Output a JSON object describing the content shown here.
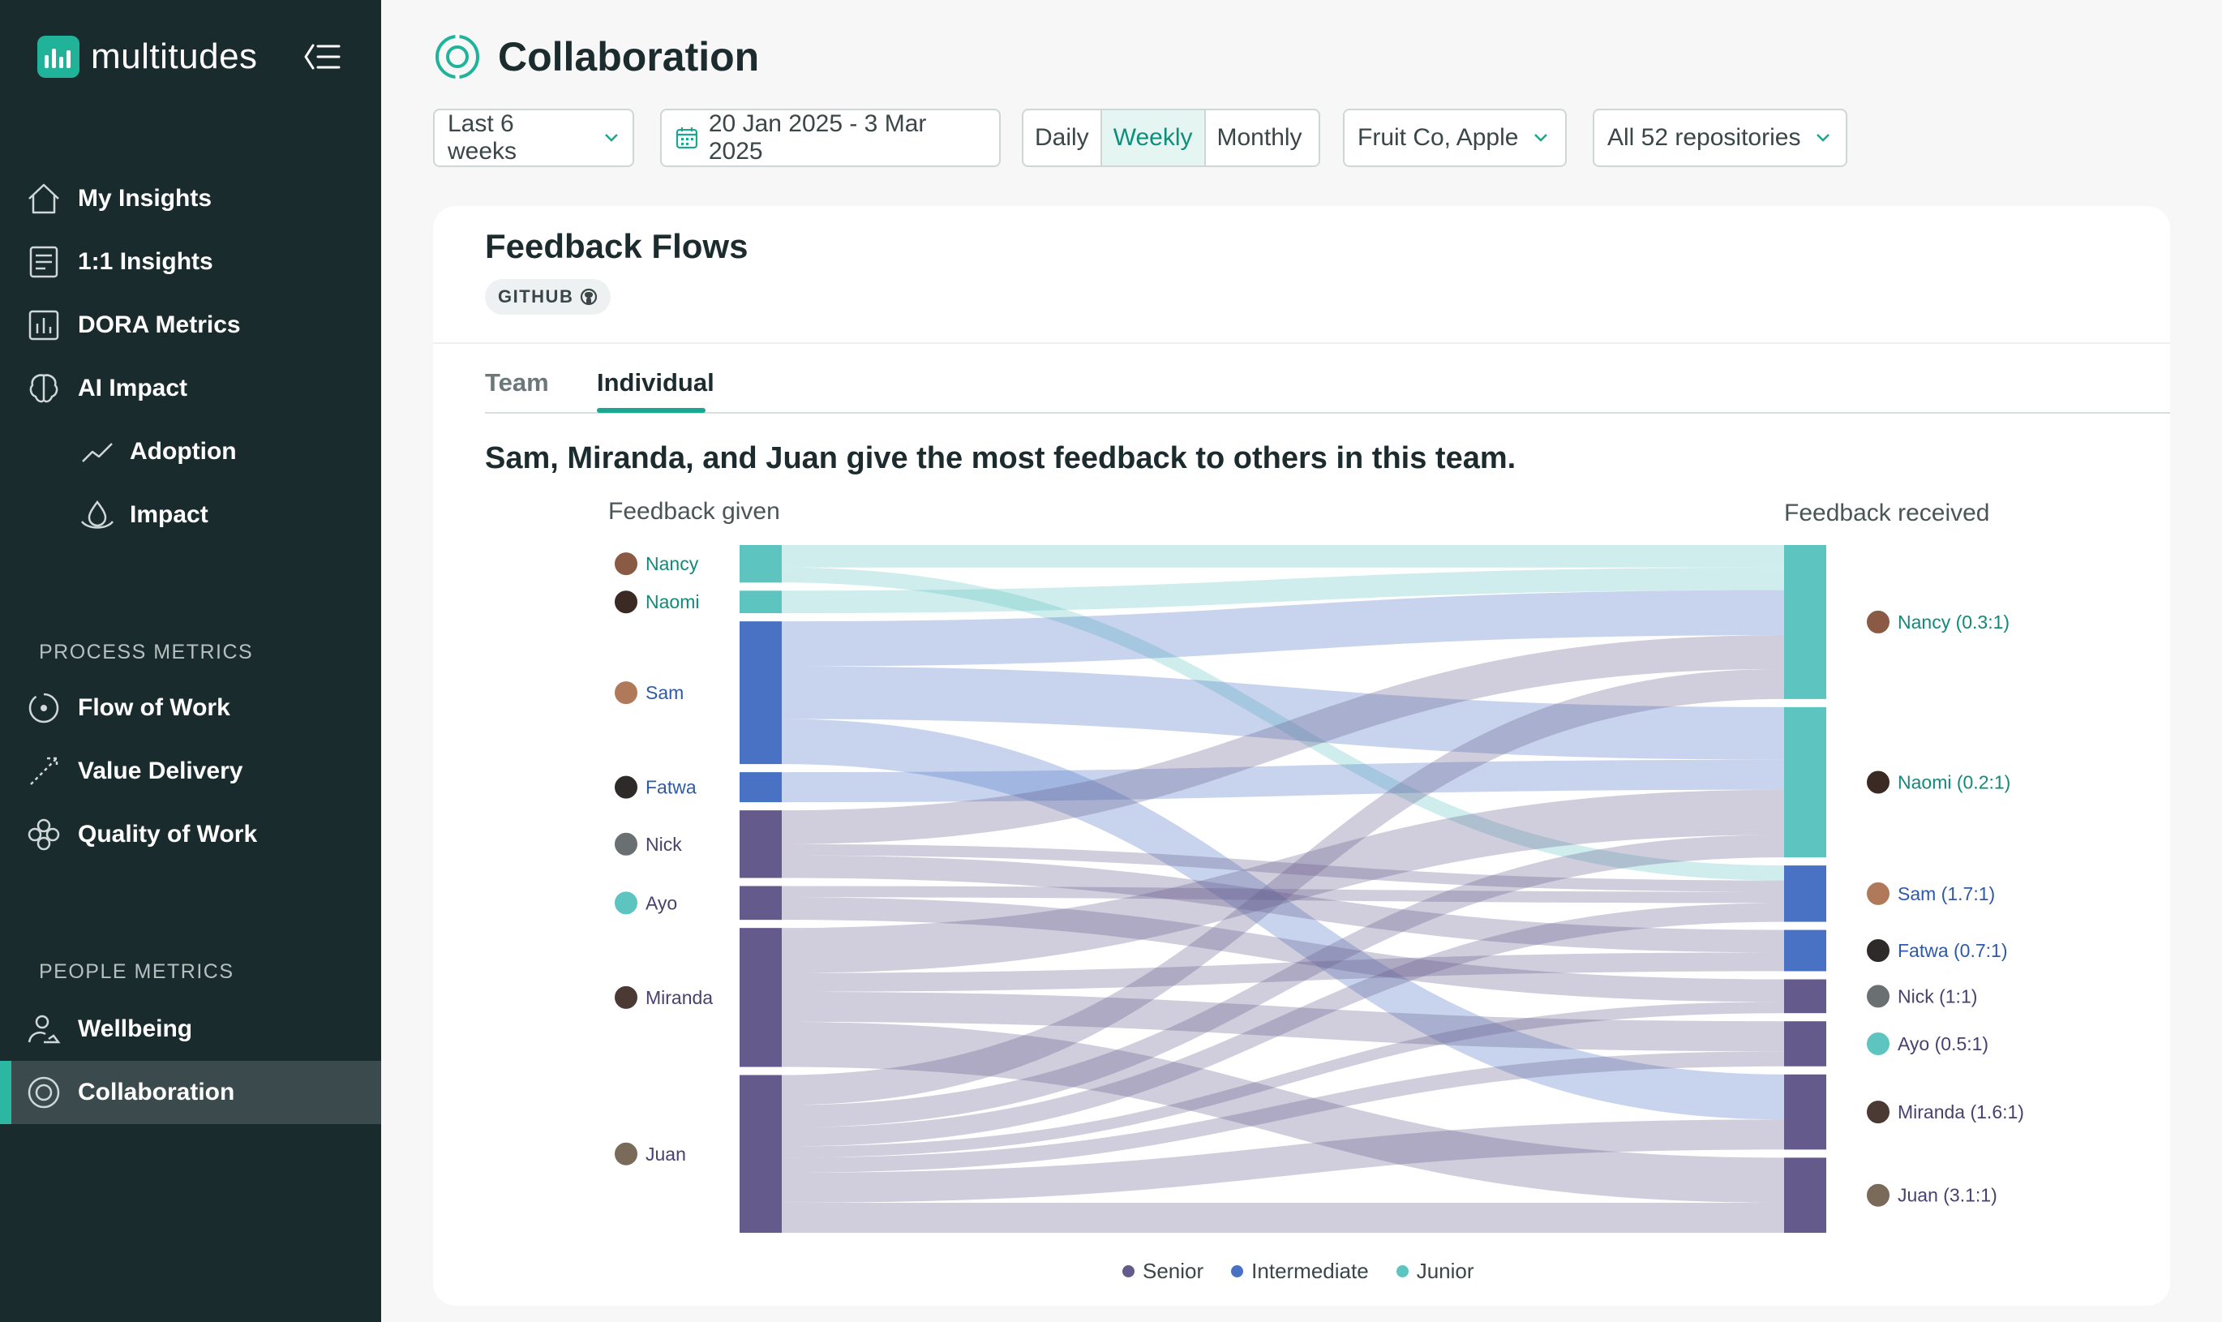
{
  "app": {
    "name": "multitudes"
  },
  "sidebar": {
    "main": [
      {
        "label": "My Insights",
        "icon": "home-icon"
      },
      {
        "label": "1:1 Insights",
        "icon": "document-icon"
      },
      {
        "label": "DORA Metrics",
        "icon": "bar-chart-icon"
      },
      {
        "label": "AI Impact",
        "icon": "brain-icon"
      },
      {
        "label": "Adoption",
        "icon": "trend-line-icon",
        "sub": true
      },
      {
        "label": "Impact",
        "icon": "droplet-icon",
        "sub": true
      }
    ],
    "process_heading": "PROCESS METRICS",
    "process": [
      {
        "label": "Flow of Work",
        "icon": "flow-icon"
      },
      {
        "label": "Value Delivery",
        "icon": "value-delivery-icon"
      },
      {
        "label": "Quality of Work",
        "icon": "quality-icon"
      }
    ],
    "people_heading": "PEOPLE METRICS",
    "people": [
      {
        "label": "Wellbeing",
        "icon": "wellbeing-icon"
      },
      {
        "label": "Collaboration",
        "icon": "collaboration-icon",
        "active": true
      }
    ]
  },
  "header": {
    "title": "Collaboration",
    "filters": {
      "period": "Last 6 weeks",
      "date_range": "20 Jan 2025 - 3 Mar 2025",
      "granularity": [
        "Daily",
        "Weekly",
        "Monthly"
      ],
      "granularity_selected": "Weekly",
      "team": "Fruit Co, Apple",
      "repositories": "All 52 repositories"
    }
  },
  "card": {
    "title": "Feedback Flows",
    "badge": "GITHUB",
    "tabs": [
      "Team",
      "Individual"
    ],
    "active_tab": "Individual",
    "headline": "Sam, Miranda, and Juan give the most feedback to others in this team."
  },
  "chart_data": {
    "type": "sankey",
    "left_label": "Feedback given",
    "right_label": "Feedback received",
    "legend": [
      {
        "name": "Senior",
        "color": "#655a8c"
      },
      {
        "name": "Intermediate",
        "color": "#4a72c4"
      },
      {
        "name": "Junior",
        "color": "#5ec4c0"
      }
    ],
    "given": [
      {
        "name": "Nancy",
        "level": "Junior"
      },
      {
        "name": "Naomi",
        "level": "Junior"
      },
      {
        "name": "Sam",
        "level": "Intermediate"
      },
      {
        "name": "Fatwa",
        "level": "Intermediate"
      },
      {
        "name": "Nick",
        "level": "Senior"
      },
      {
        "name": "Ayo",
        "level": "Senior"
      },
      {
        "name": "Miranda",
        "level": "Senior"
      },
      {
        "name": "Juan",
        "level": "Senior"
      }
    ],
    "received": [
      {
        "label": "Nancy (0.3:1)",
        "level": "Junior"
      },
      {
        "label": "Naomi (0.2:1)",
        "level": "Junior"
      },
      {
        "label": "Sam (1.7:1)",
        "level": "Intermediate"
      },
      {
        "label": "Fatwa (0.7:1)",
        "level": "Intermediate"
      },
      {
        "label": "Nick (1:1)",
        "level": "Senior"
      },
      {
        "label": "Ayo (0.5:1)",
        "level": "Senior"
      },
      {
        "label": "Miranda (1.6:1)",
        "level": "Senior"
      },
      {
        "label": "Juan (3.1:1)",
        "level": "Senior"
      }
    ],
    "flows": [
      {
        "from": "Nancy",
        "to": "Nancy",
        "value": 0.6
      },
      {
        "from": "Nancy",
        "to": "Sam",
        "value": 0.4
      },
      {
        "from": "Naomi",
        "to": "Nancy",
        "value": 0.6
      },
      {
        "from": "Sam",
        "to": "Nancy",
        "value": 1.2
      },
      {
        "from": "Sam",
        "to": "Naomi",
        "value": 1.4
      },
      {
        "from": "Sam",
        "to": "Miranda",
        "value": 1.2
      },
      {
        "from": "Fatwa",
        "to": "Naomi",
        "value": 0.8
      },
      {
        "from": "Nick",
        "to": "Nancy",
        "value": 0.9
      },
      {
        "from": "Nick",
        "to": "Sam",
        "value": 0.3
      },
      {
        "from": "Nick",
        "to": "Fatwa",
        "value": 0.6
      },
      {
        "from": "Ayo",
        "to": "Sam",
        "value": 0.3
      },
      {
        "from": "Ayo",
        "to": "Nick",
        "value": 0.6
      },
      {
        "from": "Miranda",
        "to": "Naomi",
        "value": 1.2
      },
      {
        "from": "Miranda",
        "to": "Fatwa",
        "value": 0.5
      },
      {
        "from": "Miranda",
        "to": "Ayo",
        "value": 0.8
      },
      {
        "from": "Miranda",
        "to": "Juan",
        "value": 1.2
      },
      {
        "from": "Juan",
        "to": "Nancy",
        "value": 0.8
      },
      {
        "from": "Juan",
        "to": "Naomi",
        "value": 0.6
      },
      {
        "from": "Juan",
        "to": "Sam",
        "value": 0.5
      },
      {
        "from": "Juan",
        "to": "Nick",
        "value": 0.3
      },
      {
        "from": "Juan",
        "to": "Ayo",
        "value": 0.4
      },
      {
        "from": "Juan",
        "to": "Miranda",
        "value": 0.8
      },
      {
        "from": "Juan",
        "to": "Juan",
        "value": 0.8
      }
    ]
  }
}
